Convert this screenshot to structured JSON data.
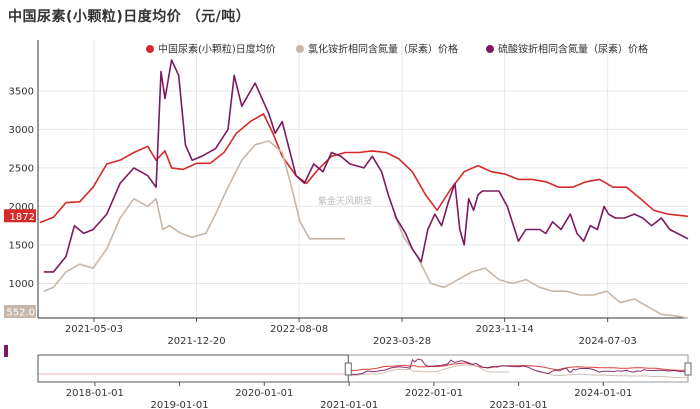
{
  "title": "中国尿素(小颗粒)日度均价 （元/吨）",
  "watermark": "紫金天风期货",
  "chart_data": {
    "type": "line",
    "title": "中国尿素(小颗粒)日度均价 （元/吨）",
    "xlabel": "",
    "ylabel": "",
    "ylim": [
      552,
      3900
    ],
    "yticks": [
      1000,
      1500,
      2000,
      2500,
      3000,
      3500
    ],
    "xticks": [
      "2021-05-03",
      "2021-12-20",
      "2022-08-08",
      "2023-03-28",
      "2023-11-14",
      "2024-07-03"
    ],
    "xlim": [
      "2020-12-28",
      "2024-12-31"
    ],
    "grid": true,
    "legend_position": "top-right",
    "current_value_labels": [
      "1872",
      "552.0"
    ],
    "series": [
      {
        "name": "中国尿素(小颗粒)日度均价",
        "color": "#d42a2a",
        "points": [
          [
            "2021-01-01",
            1790
          ],
          [
            "2021-02-01",
            1860
          ],
          [
            "2021-03-01",
            2050
          ],
          [
            "2021-04-01",
            2060
          ],
          [
            "2021-05-01",
            2250
          ],
          [
            "2021-06-01",
            2550
          ],
          [
            "2021-07-01",
            2600
          ],
          [
            "2021-08-01",
            2700
          ],
          [
            "2021-09-01",
            2780
          ],
          [
            "2021-09-20",
            2600
          ],
          [
            "2021-10-10",
            2720
          ],
          [
            "2021-10-25",
            2500
          ],
          [
            "2021-11-20",
            2480
          ],
          [
            "2021-12-20",
            2560
          ],
          [
            "2022-01-20",
            2560
          ],
          [
            "2022-02-20",
            2700
          ],
          [
            "2022-03-20",
            2950
          ],
          [
            "2022-04-20",
            3100
          ],
          [
            "2022-05-20",
            3200
          ],
          [
            "2022-06-10",
            2950
          ],
          [
            "2022-07-01",
            2650
          ],
          [
            "2022-08-01",
            2400
          ],
          [
            "2022-08-25",
            2300
          ],
          [
            "2022-09-20",
            2480
          ],
          [
            "2022-10-20",
            2650
          ],
          [
            "2022-11-20",
            2700
          ],
          [
            "2022-12-20",
            2700
          ],
          [
            "2023-01-20",
            2720
          ],
          [
            "2023-02-20",
            2700
          ],
          [
            "2023-03-20",
            2620
          ],
          [
            "2023-04-20",
            2450
          ],
          [
            "2023-05-20",
            2150
          ],
          [
            "2023-06-15",
            1950
          ],
          [
            "2023-07-15",
            2220
          ],
          [
            "2023-08-15",
            2450
          ],
          [
            "2023-09-15",
            2530
          ],
          [
            "2023-10-15",
            2450
          ],
          [
            "2023-11-15",
            2420
          ],
          [
            "2023-12-15",
            2350
          ],
          [
            "2024-01-15",
            2350
          ],
          [
            "2024-02-15",
            2320
          ],
          [
            "2024-03-15",
            2250
          ],
          [
            "2024-04-15",
            2250
          ],
          [
            "2024-05-15",
            2320
          ],
          [
            "2024-06-15",
            2350
          ],
          [
            "2024-07-15",
            2250
          ],
          [
            "2024-08-15",
            2250
          ],
          [
            "2024-09-15",
            2100
          ],
          [
            "2024-10-15",
            1950
          ],
          [
            "2024-11-15",
            1900
          ],
          [
            "2024-12-31",
            1872
          ]
        ]
      },
      {
        "name": "氯化铵折相同含氮量（尿素）价格",
        "color": "#c8b7a8",
        "points": [
          [
            "2021-01-10",
            900
          ],
          [
            "2021-02-01",
            950
          ],
          [
            "2021-03-01",
            1150
          ],
          [
            "2021-04-01",
            1250
          ],
          [
            "2021-05-01",
            1200
          ],
          [
            "2021-06-01",
            1450
          ],
          [
            "2021-07-01",
            1850
          ],
          [
            "2021-08-01",
            2100
          ],
          [
            "2021-09-01",
            2000
          ],
          [
            "2021-09-20",
            2100
          ],
          [
            "2021-10-05",
            1700
          ],
          [
            "2021-10-20",
            1750
          ],
          [
            "2021-11-15",
            1650
          ],
          [
            "2021-12-10",
            1600
          ],
          [
            "2022-01-10",
            1650
          ],
          [
            "2022-02-01",
            1900
          ],
          [
            "2022-03-01",
            2250
          ],
          [
            "2022-04-01",
            2600
          ],
          [
            "2022-05-01",
            2800
          ],
          [
            "2022-06-01",
            2850
          ],
          [
            "2022-07-01",
            2700
          ],
          [
            "2022-07-20",
            2300
          ],
          [
            "2022-08-10",
            1800
          ],
          [
            "2022-09-01",
            1580
          ],
          [
            "2022-10-01",
            1580
          ],
          [
            "2022-11-01",
            1580
          ],
          [
            "2022-11-20",
            1580
          ]
        ]
      },
      {
        "name": "氯化铵折相同含氮量（尿素）价格-2",
        "color": "#c8b7a8",
        "points": [
          [
            "2023-03-10",
            1900
          ],
          [
            "2023-04-01",
            1600
          ],
          [
            "2023-05-01",
            1350
          ],
          [
            "2023-06-01",
            1000
          ],
          [
            "2023-07-01",
            950
          ],
          [
            "2023-08-01",
            1050
          ],
          [
            "2023-09-01",
            1150
          ],
          [
            "2023-10-01",
            1200
          ],
          [
            "2023-11-01",
            1050
          ],
          [
            "2023-12-01",
            1000
          ],
          [
            "2024-01-01",
            1050
          ],
          [
            "2024-02-01",
            950
          ],
          [
            "2024-03-01",
            900
          ],
          [
            "2024-04-01",
            900
          ],
          [
            "2024-05-01",
            850
          ],
          [
            "2024-06-01",
            850
          ],
          [
            "2024-07-01",
            900
          ],
          [
            "2024-08-01",
            750
          ],
          [
            "2024-09-01",
            800
          ],
          [
            "2024-10-01",
            700
          ],
          [
            "2024-11-01",
            600
          ],
          [
            "2024-12-01",
            580
          ],
          [
            "2024-12-31",
            552
          ]
        ]
      },
      {
        "name": "硫酸铵折相同含氮量（尿素）价格",
        "color": "#7b1a5e",
        "points": [
          [
            "2021-01-10",
            1150
          ],
          [
            "2021-02-01",
            1150
          ],
          [
            "2021-03-01",
            1350
          ],
          [
            "2021-03-20",
            1750
          ],
          [
            "2021-04-10",
            1650
          ],
          [
            "2021-05-01",
            1700
          ],
          [
            "2021-06-01",
            1900
          ],
          [
            "2021-07-01",
            2300
          ],
          [
            "2021-08-01",
            2500
          ],
          [
            "2021-09-01",
            2400
          ],
          [
            "2021-09-20",
            2250
          ],
          [
            "2021-10-01",
            3750
          ],
          [
            "2021-10-10",
            3400
          ],
          [
            "2021-10-25",
            3900
          ],
          [
            "2021-11-10",
            3700
          ],
          [
            "2021-11-25",
            2800
          ],
          [
            "2021-12-10",
            2600
          ],
          [
            "2022-01-01",
            2650
          ],
          [
            "2022-02-01",
            2750
          ],
          [
            "2022-03-01",
            3000
          ],
          [
            "2022-03-15",
            3700
          ],
          [
            "2022-04-01",
            3300
          ],
          [
            "2022-05-01",
            3600
          ],
          [
            "2022-06-01",
            3200
          ],
          [
            "2022-06-15",
            2950
          ],
          [
            "2022-07-01",
            3100
          ],
          [
            "2022-08-01",
            2400
          ],
          [
            "2022-08-20",
            2300
          ],
          [
            "2022-09-10",
            2550
          ],
          [
            "2022-10-01",
            2450
          ],
          [
            "2022-10-20",
            2700
          ],
          [
            "2022-11-10",
            2650
          ],
          [
            "2022-12-01",
            2550
          ],
          [
            "2023-01-01",
            2500
          ],
          [
            "2023-01-20",
            2650
          ],
          [
            "2023-02-10",
            2450
          ],
          [
            "2023-02-25",
            2150
          ],
          [
            "2023-03-15",
            1850
          ],
          [
            "2023-04-05",
            1650
          ],
          [
            "2023-04-20",
            1450
          ],
          [
            "2023-05-10",
            1280
          ],
          [
            "2023-05-25",
            1700
          ],
          [
            "2023-06-10",
            1900
          ],
          [
            "2023-06-25",
            1750
          ],
          [
            "2023-07-10",
            2050
          ],
          [
            "2023-07-25",
            2300
          ],
          [
            "2023-08-05",
            1700
          ],
          [
            "2023-08-15",
            1500
          ],
          [
            "2023-08-25",
            2100
          ],
          [
            "2023-09-05",
            1950
          ],
          [
            "2023-09-15",
            2150
          ],
          [
            "2023-09-25",
            2200
          ],
          [
            "2023-11-01",
            2200
          ],
          [
            "2023-11-20",
            2000
          ],
          [
            "2023-12-01",
            1800
          ],
          [
            "2023-12-15",
            1550
          ],
          [
            "2024-01-01",
            1700
          ],
          [
            "2024-02-01",
            1700
          ],
          [
            "2024-02-15",
            1650
          ],
          [
            "2024-03-01",
            1800
          ],
          [
            "2024-03-20",
            1700
          ],
          [
            "2024-04-10",
            1900
          ],
          [
            "2024-04-25",
            1650
          ],
          [
            "2024-05-10",
            1550
          ],
          [
            "2024-05-25",
            1750
          ],
          [
            "2024-06-10",
            1700
          ],
          [
            "2024-06-25",
            2000
          ],
          [
            "2024-07-05",
            1900
          ],
          [
            "2024-07-20",
            1850
          ],
          [
            "2024-08-10",
            1850
          ],
          [
            "2024-09-01",
            1900
          ],
          [
            "2024-09-20",
            1850
          ],
          [
            "2024-10-10",
            1750
          ],
          [
            "2024-11-01",
            1850
          ],
          [
            "2024-11-20",
            1700
          ],
          [
            "2024-12-31",
            1580
          ]
        ]
      }
    ]
  },
  "navigator": {
    "xticks": [
      "2018-01-01",
      "2019-01-01",
      "2020-01-01",
      "2021-01-01",
      "2022-01-01",
      "2023-01-01",
      "2024-01-01"
    ],
    "xlim": [
      "2017-05-01",
      "2024-12-31"
    ],
    "selected_range": [
      "2020-12-28",
      "2024-12-31"
    ]
  }
}
